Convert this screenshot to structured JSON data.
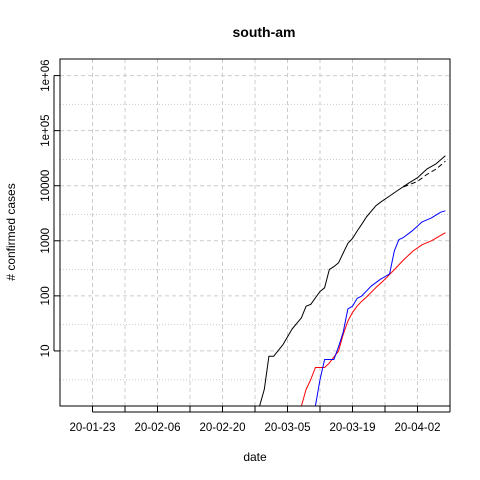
{
  "chart_data": {
    "type": "line",
    "title": "south-am",
    "xlabel": "date",
    "ylabel": "# confirmed cases",
    "y_scale": "log",
    "grid": true,
    "xlim": [
      "2020-01-16",
      "2020-04-09"
    ],
    "ylim": [
      1,
      2000000
    ],
    "x_ticks": [
      {
        "date": "2020-01-23",
        "label": "20-01-23"
      },
      {
        "date": "2020-02-06",
        "label": "20-02-06"
      },
      {
        "date": "2020-02-20",
        "label": "20-02-20"
      },
      {
        "date": "2020-03-05",
        "label": "20-03-05"
      },
      {
        "date": "2020-03-19",
        "label": "20-03-19"
      },
      {
        "date": "2020-04-02",
        "label": "20-04-02"
      }
    ],
    "y_ticks": [
      {
        "value": 10,
        "label": "10"
      },
      {
        "value": 100,
        "label": "100"
      },
      {
        "value": 1000,
        "label": "1000"
      },
      {
        "value": 10000,
        "label": "10000"
      },
      {
        "value": 100000,
        "label": "1e+05"
      },
      {
        "value": 1000000,
        "label": "1e+06"
      }
    ],
    "series": [
      {
        "color": "#000000",
        "dash": "solid",
        "points": [
          [
            "2020-02-26",
            1
          ],
          [
            "2020-02-28",
            1
          ],
          [
            "2020-02-29",
            2
          ],
          [
            "2020-03-01",
            8
          ],
          [
            "2020-03-02",
            8
          ],
          [
            "2020-03-04",
            13
          ],
          [
            "2020-03-06",
            25
          ],
          [
            "2020-03-08",
            40
          ],
          [
            "2020-03-09",
            65
          ],
          [
            "2020-03-10",
            70
          ],
          [
            "2020-03-12",
            120
          ],
          [
            "2020-03-13",
            140
          ],
          [
            "2020-03-14",
            300
          ],
          [
            "2020-03-15",
            340
          ],
          [
            "2020-03-16",
            400
          ],
          [
            "2020-03-17",
            600
          ],
          [
            "2020-03-18",
            900
          ],
          [
            "2020-03-19",
            1100
          ],
          [
            "2020-03-20",
            1500
          ],
          [
            "2020-03-21",
            2000
          ],
          [
            "2020-03-22",
            2700
          ],
          [
            "2020-03-24",
            4300
          ],
          [
            "2020-03-25",
            5000
          ],
          [
            "2020-03-27",
            6500
          ],
          [
            "2020-03-29",
            8500
          ],
          [
            "2020-03-31",
            11000
          ],
          [
            "2020-04-02",
            14000
          ],
          [
            "2020-04-04",
            20000
          ],
          [
            "2020-04-06",
            25000
          ],
          [
            "2020-04-08",
            35000
          ]
        ]
      },
      {
        "color": "#000000",
        "dash": "dashed",
        "points": [
          [
            "2020-03-30",
            9500
          ],
          [
            "2020-04-02",
            12000
          ],
          [
            "2020-04-04",
            16000
          ],
          [
            "2020-04-06",
            20000
          ],
          [
            "2020-04-08",
            28000
          ]
        ]
      },
      {
        "color": "#ff0000",
        "dash": "solid",
        "points": [
          [
            "2020-03-05",
            1
          ],
          [
            "2020-03-08",
            1
          ],
          [
            "2020-03-09",
            2
          ],
          [
            "2020-03-10",
            3
          ],
          [
            "2020-03-11",
            5
          ],
          [
            "2020-03-13",
            5
          ],
          [
            "2020-03-14",
            6
          ],
          [
            "2020-03-16",
            10
          ],
          [
            "2020-03-17",
            20
          ],
          [
            "2020-03-18",
            35
          ],
          [
            "2020-03-19",
            50
          ],
          [
            "2020-03-20",
            65
          ],
          [
            "2020-03-21",
            80
          ],
          [
            "2020-03-22",
            95
          ],
          [
            "2020-03-24",
            140
          ],
          [
            "2020-03-26",
            200
          ],
          [
            "2020-03-28",
            300
          ],
          [
            "2020-03-30",
            450
          ],
          [
            "2020-04-01",
            650
          ],
          [
            "2020-04-03",
            850
          ],
          [
            "2020-04-05",
            1000
          ],
          [
            "2020-04-08",
            1400
          ]
        ]
      },
      {
        "color": "#0000ff",
        "dash": "solid",
        "points": [
          [
            "2020-03-10",
            1
          ],
          [
            "2020-03-11",
            1
          ],
          [
            "2020-03-12",
            3
          ],
          [
            "2020-03-13",
            7
          ],
          [
            "2020-03-15",
            7
          ],
          [
            "2020-03-16",
            12
          ],
          [
            "2020-03-17",
            22
          ],
          [
            "2020-03-18",
            58
          ],
          [
            "2020-03-19",
            65
          ],
          [
            "2020-03-20",
            90
          ],
          [
            "2020-03-21",
            100
          ],
          [
            "2020-03-23",
            150
          ],
          [
            "2020-03-25",
            200
          ],
          [
            "2020-03-27",
            250
          ],
          [
            "2020-03-28",
            650
          ],
          [
            "2020-03-29",
            1050
          ],
          [
            "2020-03-30",
            1150
          ],
          [
            "2020-04-01",
            1550
          ],
          [
            "2020-04-03",
            2200
          ],
          [
            "2020-04-05",
            2600
          ],
          [
            "2020-04-07",
            3300
          ],
          [
            "2020-04-08",
            3500
          ]
        ]
      }
    ]
  }
}
